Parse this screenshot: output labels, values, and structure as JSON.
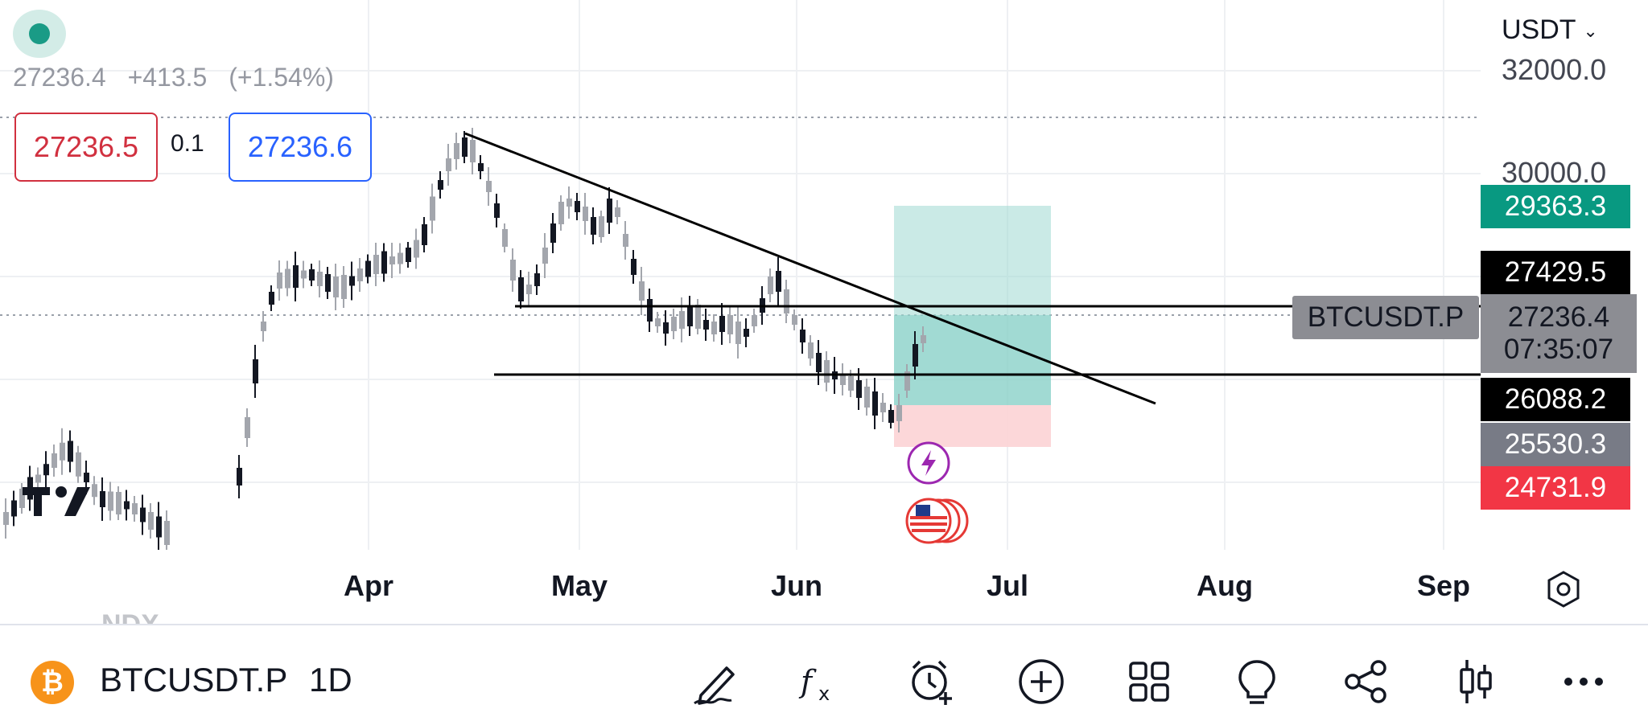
{
  "quote": {
    "price": "27236.4",
    "change": "+413.5",
    "change_pct": "(+1.54%)"
  },
  "order": {
    "bid": "27236.5",
    "spread": "0.1",
    "ask": "27236.6"
  },
  "currency": {
    "label": "USDT",
    "arrow": "chevron-down-icon"
  },
  "y_axis": {
    "label_32000": "32000.0",
    "label_30000": "30000.0"
  },
  "price_labels": {
    "target": {
      "value": "29363.3",
      "color": "#089981"
    },
    "level_1": {
      "value": "27429.5",
      "color": "#000000"
    },
    "current": {
      "value": "27236.4",
      "countdown": "07:35:07",
      "color": "#8c8d93"
    },
    "level_2": {
      "value": "26088.2",
      "color": "#000000"
    },
    "entry": {
      "value": "25530.3",
      "color": "#787b86"
    },
    "stop": {
      "value": "24731.9",
      "color": "#f23645"
    }
  },
  "symbol_tag": "BTCUSDT.P",
  "x_axis": {
    "apr": "Apr",
    "may": "May",
    "jun": "Jun",
    "jul": "Jul",
    "aug": "Aug",
    "sep": "Sep"
  },
  "faded_symbol": "NDX",
  "bottom": {
    "symbol": "BTCUSDT.P",
    "timeframe": "1D",
    "coin_icon": "bitcoin-icon",
    "tools": [
      "draw-icon",
      "indicators-icon",
      "add-alert-icon",
      "plus-circle-icon",
      "layouts-icon",
      "ideas-icon",
      "share-icon",
      "chart-type-icon",
      "more-icon"
    ]
  },
  "colors": {
    "up": "#26a69a",
    "down": "#131722",
    "accent": "#2962ff",
    "target_zone": "#a7dcd6",
    "stop_zone": "#fcd3d5"
  },
  "events": {
    "lightning": "lightning-icon",
    "us_flag": "us-flag-icon"
  }
}
